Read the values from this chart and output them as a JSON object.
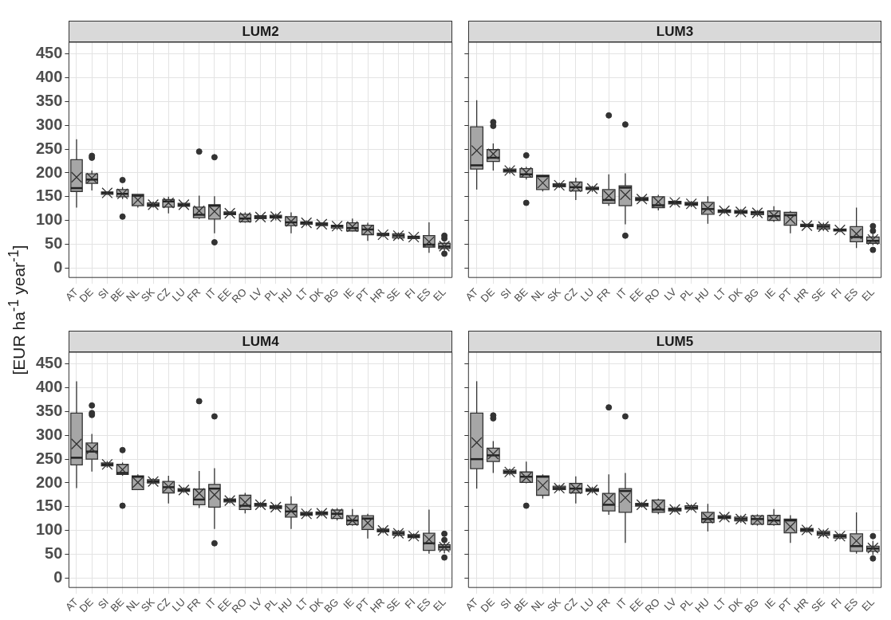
{
  "chart_data": [
    {
      "type": "box",
      "title": "LUM2",
      "ylabel": "[EUR ha$^{-1}$ year$^{-1}$]",
      "color": "#a6a6a6",
      "marker": "cross",
      "grid": true,
      "ylim": [
        -20,
        475
      ],
      "yticks": [
        0,
        50,
        100,
        150,
        200,
        250,
        300,
        350,
        400,
        450
      ],
      "categories": [
        "AT",
        "DE",
        "SI",
        "BE",
        "NL",
        "SK",
        "CZ",
        "LU",
        "FR",
        "IT",
        "EE",
        "RO",
        "LV",
        "PL",
        "HU",
        "LT",
        "DK",
        "BG",
        "IE",
        "PT",
        "HR",
        "SE",
        "FI",
        "ES",
        "EL"
      ],
      "boxes": [
        {
          "low": 127,
          "q1": 161,
          "median": 168,
          "q3": 228,
          "high": 271,
          "mean": 191
        },
        {
          "low": 163,
          "q1": 178,
          "median": 186,
          "q3": 198,
          "high": 205,
          "mean": 189,
          "outliers": [
            236,
            232
          ]
        },
        {
          "low": 155,
          "q1": 155,
          "median": 158,
          "q3": 160,
          "high": 160,
          "mean": 158
        },
        {
          "low": 145,
          "q1": 150,
          "median": 156,
          "q3": 165,
          "high": 170,
          "mean": 156,
          "outliers": [
            185,
            108
          ]
        },
        {
          "low": 127,
          "q1": 131,
          "median": 152,
          "q3": 155,
          "high": 155,
          "mean": 143
        },
        {
          "low": 127,
          "q1": 130,
          "median": 133,
          "q3": 137,
          "high": 140,
          "mean": 133
        },
        {
          "low": 115,
          "q1": 128,
          "median": 140,
          "q3": 144,
          "high": 150,
          "mean": 137
        },
        {
          "low": 130,
          "q1": 130,
          "median": 133,
          "q3": 136,
          "high": 136,
          "mean": 133
        },
        {
          "low": 103,
          "q1": 106,
          "median": 112,
          "q3": 128,
          "high": 152,
          "mean": 120,
          "outliers": [
            245
          ]
        },
        {
          "low": 73,
          "q1": 103,
          "median": 131,
          "q3": 133,
          "high": 151,
          "mean": 119,
          "outliers": [
            233,
            54
          ]
        },
        {
          "low": 112,
          "q1": 112,
          "median": 115,
          "q3": 118,
          "high": 118,
          "mean": 115
        },
        {
          "low": 95,
          "q1": 97,
          "median": 104,
          "q3": 113,
          "high": 117,
          "mean": 106
        },
        {
          "low": 104,
          "q1": 104,
          "median": 107,
          "q3": 110,
          "high": 110,
          "mean": 107
        },
        {
          "low": 100,
          "q1": 105,
          "median": 108,
          "q3": 111,
          "high": 115,
          "mean": 108
        },
        {
          "low": 73,
          "q1": 89,
          "median": 96,
          "q3": 108,
          "high": 117,
          "mean": 98
        },
        {
          "low": 88,
          "q1": 92,
          "median": 95,
          "q3": 97,
          "high": 100,
          "mean": 95
        },
        {
          "low": 89,
          "q1": 89,
          "median": 92,
          "q3": 95,
          "high": 95,
          "mean": 92
        },
        {
          "low": 80,
          "q1": 84,
          "median": 88,
          "q3": 90,
          "high": 90,
          "mean": 88
        },
        {
          "low": 77,
          "q1": 78,
          "median": 84,
          "q3": 95,
          "high": 104,
          "mean": 87
        },
        {
          "low": 57,
          "q1": 70,
          "median": 81,
          "q3": 90,
          "high": 95,
          "mean": 80
        },
        {
          "low": 65,
          "q1": 68,
          "median": 70,
          "q3": 73,
          "high": 73,
          "mean": 70
        },
        {
          "low": 60,
          "q1": 63,
          "median": 68,
          "q3": 72,
          "high": 75,
          "mean": 68
        },
        {
          "low": 62,
          "q1": 62,
          "median": 65,
          "q3": 67,
          "high": 67,
          "mean": 65
        },
        {
          "low": 32,
          "q1": 44,
          "median": 49,
          "q3": 68,
          "high": 96,
          "mean": 55
        },
        {
          "low": 36,
          "q1": 41,
          "median": 45,
          "q3": 52,
          "high": 55,
          "mean": 46,
          "outliers": [
            68,
            62,
            30
          ]
        }
      ]
    },
    {
      "type": "box",
      "title": "LUM3",
      "color": "#a6a6a6",
      "marker": "cross",
      "grid": true,
      "tick_labels": "x",
      "ylim": [
        -20,
        475
      ],
      "yticks": [
        0,
        50,
        100,
        150,
        200,
        250,
        300,
        350,
        400,
        450
      ],
      "categories": [
        "AT",
        "DE",
        "SI",
        "BE",
        "NL",
        "SK",
        "CZ",
        "LU",
        "FR",
        "IT",
        "EE",
        "RO",
        "LV",
        "PL",
        "HU",
        "LT",
        "DK",
        "BG",
        "IE",
        "PT",
        "HR",
        "SE",
        "FI",
        "ES",
        "EL"
      ],
      "boxes": [
        {
          "low": 165,
          "q1": 208,
          "median": 216,
          "q3": 297,
          "high": 353,
          "mean": 247
        },
        {
          "low": 205,
          "q1": 224,
          "median": 232,
          "q3": 249,
          "high": 262,
          "mean": 240,
          "outliers": [
            307,
            299
          ]
        },
        {
          "low": 198,
          "q1": 202,
          "median": 205,
          "q3": 208,
          "high": 212,
          "mean": 205
        },
        {
          "low": 186,
          "q1": 191,
          "median": 197,
          "q3": 209,
          "high": 213,
          "mean": 201,
          "outliers": [
            237,
            137
          ]
        },
        {
          "low": 161,
          "q1": 165,
          "median": 193,
          "q3": 195,
          "high": 195,
          "mean": 179
        },
        {
          "low": 168,
          "q1": 171,
          "median": 174,
          "q3": 177,
          "high": 180,
          "mean": 174
        },
        {
          "low": 143,
          "q1": 162,
          "median": 170,
          "q3": 181,
          "high": 190,
          "mean": 171
        },
        {
          "low": 160,
          "q1": 165,
          "median": 167,
          "q3": 170,
          "high": 173,
          "mean": 167
        },
        {
          "low": 131,
          "q1": 136,
          "median": 143,
          "q3": 165,
          "high": 197,
          "mean": 152,
          "outliers": [
            321
          ]
        },
        {
          "low": 92,
          "q1": 131,
          "median": 169,
          "q3": 173,
          "high": 199,
          "mean": 154,
          "outliers": [
            302,
            68
          ]
        },
        {
          "low": 142,
          "q1": 142,
          "median": 145,
          "q3": 148,
          "high": 148,
          "mean": 145
        },
        {
          "low": 121,
          "q1": 127,
          "median": 132,
          "q3": 150,
          "high": 154,
          "mean": 139
        },
        {
          "low": 132,
          "q1": 135,
          "median": 138,
          "q3": 140,
          "high": 143,
          "mean": 138
        },
        {
          "low": 128,
          "q1": 132,
          "median": 135,
          "q3": 138,
          "high": 141,
          "mean": 135
        },
        {
          "low": 93,
          "q1": 113,
          "median": 124,
          "q3": 138,
          "high": 151,
          "mean": 126
        },
        {
          "low": 114,
          "q1": 117,
          "median": 120,
          "q3": 122,
          "high": 125,
          "mean": 120
        },
        {
          "low": 112,
          "q1": 115,
          "median": 118,
          "q3": 121,
          "high": 124,
          "mean": 118
        },
        {
          "low": 108,
          "q1": 112,
          "median": 116,
          "q3": 119,
          "high": 122,
          "mean": 116
        },
        {
          "low": 97,
          "q1": 100,
          "median": 109,
          "q3": 120,
          "high": 130,
          "mean": 110
        },
        {
          "low": 73,
          "q1": 90,
          "median": 111,
          "q3": 117,
          "high": 120,
          "mean": 103
        },
        {
          "low": 87,
          "q1": 87,
          "median": 89,
          "q3": 92,
          "high": 92,
          "mean": 89
        },
        {
          "low": 78,
          "q1": 82,
          "median": 87,
          "q3": 91,
          "high": 95,
          "mean": 87
        },
        {
          "low": 75,
          "q1": 78,
          "median": 80,
          "q3": 82,
          "high": 82,
          "mean": 80
        },
        {
          "low": 42,
          "q1": 55,
          "median": 65,
          "q3": 87,
          "high": 127,
          "mean": 72
        },
        {
          "low": 48,
          "q1": 52,
          "median": 57,
          "q3": 65,
          "high": 72,
          "mean": 60,
          "outliers": [
            88,
            78,
            38
          ]
        }
      ]
    },
    {
      "type": "box",
      "title": "LUM4",
      "color": "#a6a6a6",
      "marker": "cross",
      "grid": true,
      "ylim": [
        -20,
        475
      ],
      "yticks": [
        0,
        50,
        100,
        150,
        200,
        250,
        300,
        350,
        400,
        450
      ],
      "categories": [
        "AT",
        "DE",
        "SI",
        "BE",
        "NL",
        "SK",
        "CZ",
        "LU",
        "FR",
        "IT",
        "EE",
        "RO",
        "LV",
        "PL",
        "HU",
        "LT",
        "DK",
        "BG",
        "IE",
        "PT",
        "HR",
        "SE",
        "FI",
        "ES",
        "EL"
      ],
      "boxes": [
        {
          "low": 189,
          "q1": 238,
          "median": 253,
          "q3": 347,
          "high": 414,
          "mean": 282
        },
        {
          "low": 224,
          "q1": 250,
          "median": 266,
          "q3": 284,
          "high": 303,
          "mean": 272,
          "outliers": [
            363,
            347,
            343
          ]
        },
        {
          "low": 232,
          "q1": 236,
          "median": 239,
          "q3": 242,
          "high": 246,
          "mean": 239
        },
        {
          "low": 215,
          "q1": 218,
          "median": 221,
          "q3": 239,
          "high": 243,
          "mean": 228,
          "outliers": [
            269,
            152
          ]
        },
        {
          "low": 185,
          "q1": 186,
          "median": 213,
          "q3": 215,
          "high": 218,
          "mean": 201
        },
        {
          "low": 197,
          "q1": 200,
          "median": 203,
          "q3": 207,
          "high": 210,
          "mean": 203
        },
        {
          "low": 157,
          "q1": 179,
          "median": 191,
          "q3": 203,
          "high": 215,
          "mean": 192
        },
        {
          "low": 179,
          "q1": 182,
          "median": 185,
          "q3": 188,
          "high": 191,
          "mean": 185
        },
        {
          "low": 147,
          "q1": 154,
          "median": 165,
          "q3": 187,
          "high": 225,
          "mean": 178,
          "outliers": [
            372
          ]
        },
        {
          "low": 103,
          "q1": 149,
          "median": 188,
          "q3": 197,
          "high": 231,
          "mean": 175,
          "outliers": [
            340,
            73
          ]
        },
        {
          "low": 157,
          "q1": 160,
          "median": 163,
          "q3": 166,
          "high": 169,
          "mean": 163
        },
        {
          "low": 136,
          "q1": 144,
          "median": 152,
          "q3": 174,
          "high": 179,
          "mean": 159
        },
        {
          "low": 148,
          "q1": 151,
          "median": 154,
          "q3": 157,
          "high": 160,
          "mean": 154
        },
        {
          "low": 143,
          "q1": 146,
          "median": 149,
          "q3": 152,
          "high": 155,
          "mean": 149
        },
        {
          "low": 103,
          "q1": 128,
          "median": 140,
          "q3": 155,
          "high": 172,
          "mean": 141
        },
        {
          "low": 129,
          "q1": 132,
          "median": 135,
          "q3": 138,
          "high": 141,
          "mean": 135
        },
        {
          "low": 130,
          "q1": 133,
          "median": 136,
          "q3": 139,
          "high": 142,
          "mean": 136
        },
        {
          "low": 121,
          "q1": 125,
          "median": 135,
          "q3": 143,
          "high": 147,
          "mean": 135
        },
        {
          "low": 110,
          "q1": 112,
          "median": 121,
          "q3": 131,
          "high": 145,
          "mean": 121
        },
        {
          "low": 83,
          "q1": 102,
          "median": 125,
          "q3": 131,
          "high": 135,
          "mean": 116
        },
        {
          "low": 94,
          "q1": 97,
          "median": 100,
          "q3": 103,
          "high": 106,
          "mean": 100
        },
        {
          "low": 87,
          "q1": 90,
          "median": 94,
          "q3": 98,
          "high": 101,
          "mean": 94
        },
        {
          "low": 82,
          "q1": 85,
          "median": 88,
          "q3": 91,
          "high": 94,
          "mean": 88
        },
        {
          "low": 51,
          "q1": 58,
          "median": 73,
          "q3": 94,
          "high": 144,
          "mean": 81
        },
        {
          "low": 52,
          "q1": 59,
          "median": 65,
          "q3": 70,
          "high": 75,
          "mean": 65,
          "outliers": [
            93,
            80,
            43
          ]
        }
      ]
    },
    {
      "type": "box",
      "title": "LUM5",
      "color": "#a6a6a6",
      "marker": "cross",
      "grid": true,
      "tick_labels": "x",
      "ylim": [
        -20,
        475
      ],
      "yticks": [
        0,
        50,
        100,
        150,
        200,
        250,
        300,
        350,
        400,
        450
      ],
      "categories": [
        "AT",
        "DE",
        "SI",
        "BE",
        "NL",
        "SK",
        "CZ",
        "LU",
        "FR",
        "IT",
        "EE",
        "RO",
        "LV",
        "PL",
        "HU",
        "LT",
        "DK",
        "BG",
        "IE",
        "PT",
        "HR",
        "SE",
        "FI",
        "ES",
        "EL"
      ],
      "boxes": [
        {
          "low": 188,
          "q1": 230,
          "median": 250,
          "q3": 347,
          "high": 414,
          "mean": 285
        },
        {
          "low": 221,
          "q1": 245,
          "median": 258,
          "q3": 273,
          "high": 288,
          "mean": 261,
          "outliers": [
            342,
            336
          ]
        },
        {
          "low": 216,
          "q1": 220,
          "median": 223,
          "q3": 227,
          "high": 230,
          "mean": 223
        },
        {
          "low": 199,
          "q1": 201,
          "median": 213,
          "q3": 223,
          "high": 245,
          "mean": 211,
          "outliers": [
            152
          ]
        },
        {
          "low": 167,
          "q1": 174,
          "median": 213,
          "q3": 215,
          "high": 218,
          "mean": 195
        },
        {
          "low": 183,
          "q1": 186,
          "median": 189,
          "q3": 193,
          "high": 196,
          "mean": 189
        },
        {
          "low": 157,
          "q1": 179,
          "median": 188,
          "q3": 199,
          "high": 214,
          "mean": 188
        },
        {
          "low": 178,
          "q1": 182,
          "median": 185,
          "q3": 188,
          "high": 192,
          "mean": 185
        },
        {
          "low": 133,
          "q1": 141,
          "median": 154,
          "q3": 178,
          "high": 218,
          "mean": 167,
          "outliers": [
            359
          ]
        },
        {
          "low": 74,
          "q1": 138,
          "median": 183,
          "q3": 188,
          "high": 221,
          "mean": 169,
          "outliers": [
            340
          ]
        },
        {
          "low": 148,
          "q1": 151,
          "median": 154,
          "q3": 157,
          "high": 160,
          "mean": 154
        },
        {
          "low": 134,
          "q1": 138,
          "median": 144,
          "q3": 164,
          "high": 167,
          "mean": 152
        },
        {
          "low": 138,
          "q1": 141,
          "median": 144,
          "q3": 147,
          "high": 150,
          "mean": 144
        },
        {
          "low": 142,
          "q1": 145,
          "median": 148,
          "q3": 152,
          "high": 155,
          "mean": 148
        },
        {
          "low": 98,
          "q1": 117,
          "median": 124,
          "q3": 138,
          "high": 156,
          "mean": 126
        },
        {
          "low": 122,
          "q1": 125,
          "median": 128,
          "q3": 131,
          "high": 134,
          "mean": 128
        },
        {
          "low": 116,
          "q1": 120,
          "median": 124,
          "q3": 128,
          "high": 132,
          "mean": 124
        },
        {
          "low": 110,
          "q1": 113,
          "median": 124,
          "q3": 131,
          "high": 134,
          "mean": 122
        },
        {
          "low": 110,
          "q1": 112,
          "median": 121,
          "q3": 132,
          "high": 145,
          "mean": 122
        },
        {
          "low": 74,
          "q1": 95,
          "median": 121,
          "q3": 124,
          "high": 132,
          "mean": 108
        },
        {
          "low": 95,
          "q1": 98,
          "median": 101,
          "q3": 104,
          "high": 107,
          "mean": 101
        },
        {
          "low": 86,
          "q1": 90,
          "median": 94,
          "q3": 98,
          "high": 102,
          "mean": 94
        },
        {
          "low": 81,
          "q1": 84,
          "median": 88,
          "q3": 91,
          "high": 94,
          "mean": 88
        },
        {
          "low": 51,
          "q1": 56,
          "median": 67,
          "q3": 93,
          "high": 138,
          "mean": 78
        },
        {
          "low": 48,
          "q1": 56,
          "median": 62,
          "q3": 67,
          "high": 78,
          "mean": 63,
          "outliers": [
            88,
            41
          ]
        }
      ]
    }
  ]
}
